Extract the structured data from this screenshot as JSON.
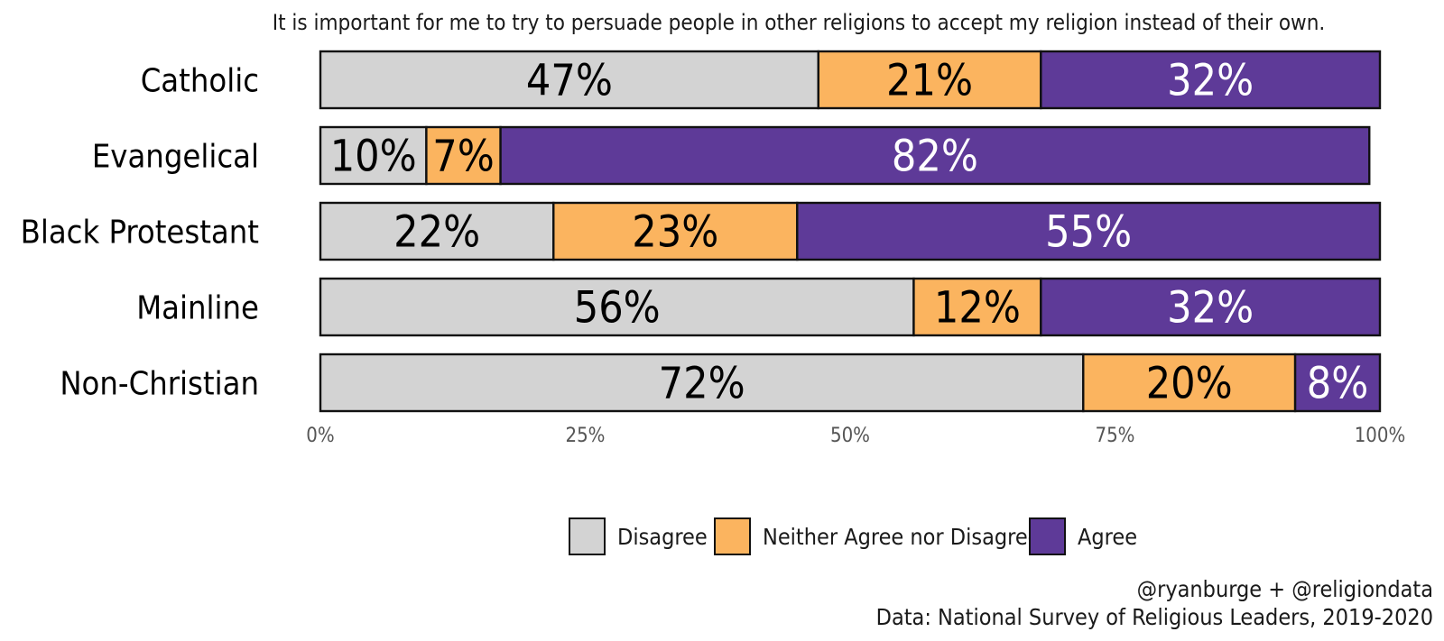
{
  "chart_data": {
    "type": "bar",
    "orientation": "horizontal",
    "stacked": true,
    "title": "It is important for me to try to persuade people in other religions to accept my religion instead of their own.",
    "categories": [
      "Catholic",
      "Evangelical",
      "Black Protestant",
      "Mainline",
      "Non-Christian"
    ],
    "series": [
      {
        "name": "Disagree",
        "color": "#d3d3d3",
        "label_color": "#000000",
        "values": [
          47,
          10,
          22,
          56,
          72
        ],
        "labels": [
          "47%",
          "10%",
          "22%",
          "56%",
          "72%"
        ]
      },
      {
        "name": "Neither Agree nor Disagree",
        "color": "#fbb45f",
        "label_color": "#000000",
        "values": [
          21,
          7,
          23,
          12,
          20
        ],
        "labels": [
          "21%",
          "7%",
          "23%",
          "12%",
          "20%"
        ]
      },
      {
        "name": "Agree",
        "color": "#5e3a98",
        "label_color": "#ffffff",
        "values": [
          32,
          82,
          55,
          32,
          8
        ],
        "labels": [
          "32%",
          "82%",
          "55%",
          "32%",
          "8%"
        ]
      }
    ],
    "xlim": [
      0,
      100
    ],
    "x_ticks": [
      0,
      25,
      50,
      75,
      100
    ],
    "x_tick_labels": [
      "0%",
      "25%",
      "50%",
      "75%",
      "100%"
    ],
    "xlabel": "",
    "ylabel": "",
    "legend_position": "bottom",
    "grid": false,
    "captions": [
      "@ryanburge + @religiondata",
      "Data: National Survey of Religious Leaders, 2019-2020"
    ]
  }
}
